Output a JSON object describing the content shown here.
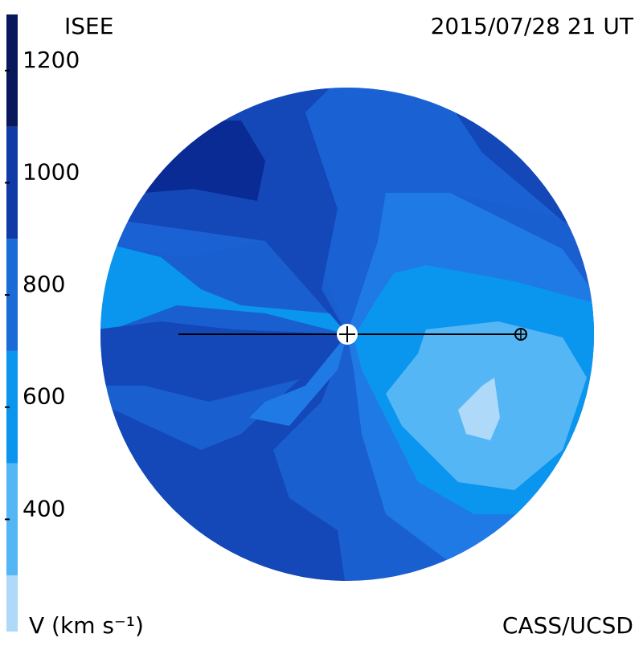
{
  "chart_data": {
    "type": "colormap",
    "title": "ISEE",
    "subtitle": "2015/07/28 21 UT",
    "credit": "CASS/UCSD",
    "colorbar_label": "V (km s⁻¹)",
    "ylim": [
      200,
      1300
    ],
    "yticks": [
      400,
      600,
      800,
      1000,
      1200
    ],
    "levels": [
      200,
      300,
      500,
      700,
      900,
      1100,
      1300
    ],
    "colors": [
      "#aed9f8",
      "#55b6f6",
      "#0a96ee",
      "#1a6ad8",
      "#0f3aa8",
      "#08185c"
    ]
  }
}
